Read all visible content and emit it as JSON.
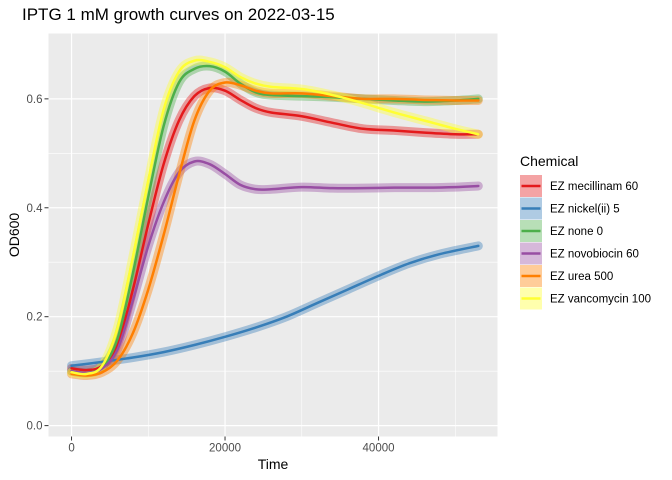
{
  "chart_data": {
    "type": "line",
    "title": "IPTG 1 mM growth curves on 2022-03-15",
    "xlabel": "Time",
    "ylabel": "OD600",
    "xlim": [
      -3000,
      55500
    ],
    "ylim": [
      -0.02,
      0.72
    ],
    "x_ticks": [
      0,
      20000,
      40000
    ],
    "x_tick_labels": [
      "0",
      "20000",
      "40000"
    ],
    "y_ticks": [
      0.0,
      0.2,
      0.4,
      0.6
    ],
    "y_tick_labels": [
      "0.0",
      "0.2",
      "0.4",
      "0.6"
    ],
    "grid": true,
    "legend": {
      "title": "Chemical",
      "position": "right"
    },
    "series": [
      {
        "name": "EZ mecillinam 60",
        "color": "#e41a1c",
        "x": [
          0,
          2000,
          4000,
          6000,
          8000,
          10000,
          12000,
          14000,
          16000,
          18000,
          20000,
          22000,
          24000,
          26000,
          30000,
          34000,
          38000,
          42000,
          46000,
          50000,
          53000
        ],
        "y": [
          0.105,
          0.102,
          0.11,
          0.15,
          0.25,
          0.37,
          0.48,
          0.56,
          0.605,
          0.62,
          0.615,
          0.598,
          0.583,
          0.575,
          0.568,
          0.556,
          0.545,
          0.542,
          0.538,
          0.535,
          0.535
        ]
      },
      {
        "name": "EZ nickel(ii) 5",
        "color": "#377eb8",
        "x": [
          0,
          4000,
          8000,
          12000,
          16000,
          20000,
          24000,
          28000,
          32000,
          36000,
          40000,
          44000,
          48000,
          53000
        ],
        "y": [
          0.11,
          0.117,
          0.125,
          0.135,
          0.148,
          0.163,
          0.18,
          0.2,
          0.225,
          0.25,
          0.275,
          0.298,
          0.315,
          0.33
        ]
      },
      {
        "name": "EZ none 0",
        "color": "#4daf4a",
        "x": [
          0,
          2000,
          4000,
          6000,
          8000,
          10000,
          12000,
          14000,
          16000,
          18000,
          20000,
          22000,
          24000,
          26000,
          30000,
          34000,
          38000,
          42000,
          46000,
          50000,
          53000
        ],
        "y": [
          0.1,
          0.097,
          0.108,
          0.16,
          0.28,
          0.42,
          0.55,
          0.63,
          0.655,
          0.66,
          0.65,
          0.628,
          0.612,
          0.607,
          0.605,
          0.603,
          0.6,
          0.597,
          0.595,
          0.597,
          0.6
        ]
      },
      {
        "name": "EZ novobiocin 60",
        "color": "#984ea3",
        "x": [
          0,
          2000,
          4000,
          6000,
          8000,
          10000,
          12000,
          14000,
          16000,
          18000,
          20000,
          22000,
          24000,
          26000,
          30000,
          34000,
          38000,
          42000,
          46000,
          50000,
          53000
        ],
        "y": [
          0.1,
          0.097,
          0.105,
          0.14,
          0.23,
          0.33,
          0.41,
          0.465,
          0.485,
          0.48,
          0.462,
          0.442,
          0.434,
          0.434,
          0.438,
          0.436,
          0.436,
          0.437,
          0.437,
          0.438,
          0.44
        ]
      },
      {
        "name": "EZ urea 500",
        "color": "#ff7f00",
        "x": [
          0,
          2000,
          4000,
          6000,
          8000,
          10000,
          12000,
          14000,
          16000,
          18000,
          20000,
          22000,
          24000,
          26000,
          30000,
          34000,
          38000,
          42000,
          46000,
          50000,
          53000
        ],
        "y": [
          0.095,
          0.092,
          0.098,
          0.12,
          0.17,
          0.25,
          0.35,
          0.46,
          0.56,
          0.615,
          0.63,
          0.625,
          0.615,
          0.61,
          0.61,
          0.605,
          0.6,
          0.6,
          0.598,
          0.597,
          0.597
        ]
      },
      {
        "name": "EZ vancomycin 100",
        "color": "#ffff33",
        "x": [
          0,
          2000,
          4000,
          6000,
          8000,
          10000,
          12000,
          14000,
          16000,
          18000,
          20000,
          22000,
          24000,
          26000,
          30000,
          34000,
          38000,
          42000,
          46000,
          50000,
          53000
        ],
        "y": [
          0.098,
          0.095,
          0.11,
          0.18,
          0.31,
          0.45,
          0.58,
          0.65,
          0.67,
          0.668,
          0.658,
          0.64,
          0.628,
          0.622,
          0.618,
          0.607,
          0.592,
          0.575,
          0.56,
          0.545,
          0.535
        ]
      }
    ]
  }
}
